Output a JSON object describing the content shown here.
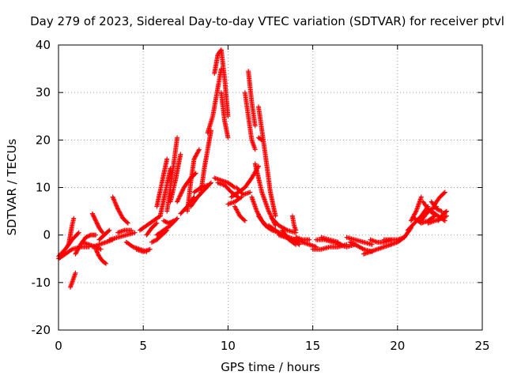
{
  "chart_data": {
    "type": "scatter",
    "title": "Day 279 of 2023, Sidereal Day-to-day VTEC variation (SDTVAR) for receiver ptvl",
    "xlabel": "GPS time / hours",
    "ylabel": "SDTVAR / TECUs",
    "xlim": [
      0,
      25
    ],
    "ylim": [
      -20,
      40
    ],
    "x_ticks": [
      0,
      5,
      10,
      15,
      20,
      25
    ],
    "y_ticks": [
      -20,
      -10,
      0,
      10,
      20,
      30,
      40
    ],
    "x_tick_labels": [
      "0",
      "5",
      "10",
      "15",
      "20",
      "25"
    ],
    "y_tick_labels": [
      "-20",
      "-10",
      "0",
      "10",
      "20",
      "30",
      "40"
    ],
    "grid": true,
    "legend": "none",
    "marker": "plus",
    "series": [
      {
        "name": "SDTVAR",
        "color": "#ff0000",
        "segments": [
          {
            "x": [
              0.0,
              0.4,
              0.8,
              1.3,
              1.8
            ],
            "y": [
              -5,
              -4,
              -3,
              -2.5,
              -2.5
            ]
          },
          {
            "x": [
              0.0,
              0.4,
              0.8,
              1.2
            ],
            "y": [
              -4.5,
              -3,
              -1,
              0.5
            ]
          },
          {
            "x": [
              0.6,
              0.7,
              0.8,
              0.9
            ],
            "y": [
              -2,
              0,
              2,
              3.5
            ]
          },
          {
            "x": [
              0.7,
              0.8,
              0.9,
              1.0
            ],
            "y": [
              -11,
              -10,
              -9,
              -8
            ]
          },
          {
            "x": [
              1.0,
              1.3,
              1.6,
              1.9,
              2.2
            ],
            "y": [
              -4,
              -2,
              -0.5,
              0,
              0
            ]
          },
          {
            "x": [
              1.4,
              1.8,
              2.2,
              2.5
            ],
            "y": [
              -1.5,
              -2,
              -2.5,
              -3
            ]
          },
          {
            "x": [
              2.0,
              2.4,
              2.8,
              3.2
            ],
            "y": [
              -2.5,
              -2,
              -1.5,
              -1
            ]
          },
          {
            "x": [
              2.2,
              2.4,
              2.6,
              2.8
            ],
            "y": [
              -3,
              -4.5,
              -5.5,
              -6
            ]
          },
          {
            "x": [
              2.0,
              2.2,
              2.4,
              2.6
            ],
            "y": [
              4.5,
              3,
              1.5,
              0.5
            ]
          },
          {
            "x": [
              2.4,
              2.7,
              3.0
            ],
            "y": [
              -1,
              0,
              1
            ]
          },
          {
            "x": [
              3.2,
              3.5,
              3.8,
              4.1
            ],
            "y": [
              8,
              5.5,
              3.5,
              2.5
            ]
          },
          {
            "x": [
              3.0,
              3.5,
              4.0,
              4.5
            ],
            "y": [
              -1,
              -0.5,
              0,
              0.5
            ]
          },
          {
            "x": [
              3.5,
              3.9,
              4.3
            ],
            "y": [
              0.5,
              1,
              1
            ]
          },
          {
            "x": [
              4.0,
              4.4,
              4.8,
              5.2
            ],
            "y": [
              -1.5,
              -2.5,
              -3,
              -3.5
            ]
          },
          {
            "x": [
              4.6,
              5.0,
              5.4
            ],
            "y": [
              -3,
              -3.5,
              -3
            ]
          },
          {
            "x": [
              4.8,
              5.2,
              5.6,
              6.0
            ],
            "y": [
              1,
              2,
              3,
              4
            ]
          },
          {
            "x": [
              5.2,
              5.5,
              5.8
            ],
            "y": [
              0,
              1.5,
              2.5
            ]
          },
          {
            "x": [
              5.5,
              5.8,
              6.1,
              6.4
            ],
            "y": [
              -1.5,
              -1,
              0,
              1
            ]
          },
          {
            "x": [
              5.8,
              6.2,
              6.6,
              7.0
            ],
            "y": [
              0,
              1,
              2,
              3.5
            ]
          },
          {
            "x": [
              6.2,
              6.5,
              6.8
            ],
            "y": [
              3,
              2.5,
              3
            ]
          },
          {
            "x": [
              5.8,
              6.1,
              6.4
            ],
            "y": [
              6,
              11,
              16
            ]
          },
          {
            "x": [
              6.0,
              6.3,
              6.6
            ],
            "y": [
              4,
              9,
              14
            ]
          },
          {
            "x": [
              6.4,
              6.6,
              6.8,
              7.0
            ],
            "y": [
              5,
              10,
              15,
              20.5
            ]
          },
          {
            "x": [
              6.6,
              6.9,
              7.2
            ],
            "y": [
              7,
              11.5,
              17
            ]
          },
          {
            "x": [
              7.0,
              7.4,
              7.8,
              8.1
            ],
            "y": [
              7,
              10,
              12,
              13
            ]
          },
          {
            "x": [
              7.2,
              7.6,
              8.0
            ],
            "y": [
              4.5,
              6,
              8
            ]
          },
          {
            "x": [
              7.6,
              7.8,
              8.0,
              8.3
            ],
            "y": [
              5,
              11,
              16,
              18
            ]
          },
          {
            "x": [
              7.8,
              8.2,
              8.6,
              9.0
            ],
            "y": [
              6,
              8,
              9.5,
              11
            ]
          },
          {
            "x": [
              8.0,
              8.4,
              8.8
            ],
            "y": [
              9,
              10,
              10.5
            ]
          },
          {
            "x": [
              8.4,
              8.6,
              8.8,
              9.0
            ],
            "y": [
              9,
              14,
              18,
              22
            ]
          },
          {
            "x": [
              8.8,
              9.1,
              9.4,
              9.6
            ],
            "y": [
              21.5,
              25,
              31,
              35
            ]
          },
          {
            "x": [
              9.2,
              9.4,
              9.6,
              9.8,
              10.0
            ],
            "y": [
              34,
              38,
              39,
              33,
              25
            ]
          },
          {
            "x": [
              9.6,
              9.8,
              10.0
            ],
            "y": [
              30,
              24,
              20.5
            ]
          },
          {
            "x": [
              9.4,
              9.8,
              10.2,
              10.6
            ],
            "y": [
              11,
              10.5,
              9,
              8
            ]
          },
          {
            "x": [
              9.2,
              9.6,
              10.0,
              10.4
            ],
            "y": [
              12,
              11.5,
              11,
              10
            ]
          },
          {
            "x": [
              10.0,
              10.4,
              10.8
            ],
            "y": [
              6.5,
              7,
              8
            ]
          },
          {
            "x": [
              10.2,
              10.6,
              11.0,
              11.4,
              11.8
            ],
            "y": [
              8,
              9,
              10,
              12,
              14.5
            ]
          },
          {
            "x": [
              10.5,
              10.9,
              11.3
            ],
            "y": [
              10,
              8.5,
              9
            ]
          },
          {
            "x": [
              10.4,
              10.7,
              11.0
            ],
            "y": [
              6,
              4,
              3
            ]
          },
          {
            "x": [
              11.2,
              11.4,
              11.6
            ],
            "y": [
              34.5,
              28,
              23
            ]
          },
          {
            "x": [
              11.0,
              11.2,
              11.4,
              11.6
            ],
            "y": [
              30,
              25,
              20,
              18
            ]
          },
          {
            "x": [
              11.8,
              12.0
            ],
            "y": [
              20.5,
              20
            ]
          },
          {
            "x": [
              11.8,
              12.0,
              12.2,
              12.5,
              12.8
            ],
            "y": [
              27,
              22,
              17,
              9,
              4
            ]
          },
          {
            "x": [
              11.6,
              11.8,
              12.0,
              12.4,
              12.8
            ],
            "y": [
              15,
              12,
              9,
              5,
              2
            ]
          },
          {
            "x": [
              11.4,
              11.7,
              12.0,
              12.4
            ],
            "y": [
              8,
              5,
              3,
              1.5
            ]
          },
          {
            "x": [
              11.8,
              12.2,
              12.6,
              13.0
            ],
            "y": [
              4,
              2,
              1,
              0.5
            ]
          },
          {
            "x": [
              12.4,
              12.8,
              13.2,
              13.6,
              14.0,
              14.4
            ],
            "y": [
              2,
              1,
              0,
              -0.5,
              -1,
              -1.5
            ]
          },
          {
            "x": [
              12.6,
              13.0,
              13.5,
              14.0
            ],
            "y": [
              3.5,
              2,
              1,
              0.5
            ]
          },
          {
            "x": [
              13.0,
              13.4,
              13.8,
              14.2
            ],
            "y": [
              0,
              -0.5,
              -1,
              -2
            ]
          },
          {
            "x": [
              13.2,
              13.6,
              14.0
            ],
            "y": [
              1,
              -1,
              -2
            ]
          },
          {
            "x": [
              13.8,
              13.9,
              14.0
            ],
            "y": [
              4,
              2,
              1
            ]
          },
          {
            "x": [
              14.0,
              14.4,
              14.8
            ],
            "y": [
              -0.5,
              -1,
              -1
            ]
          },
          {
            "x": [
              14.4,
              14.8,
              15.2
            ],
            "y": [
              -1.5,
              -2,
              -2.5
            ]
          },
          {
            "x": [
              15.0,
              15.5,
              16.0,
              16.5,
              17.0
            ],
            "y": [
              -3,
              -3,
              -2.5,
              -2.5,
              -2
            ]
          },
          {
            "x": [
              15.2,
              15.7,
              16.2,
              16.7
            ],
            "y": [
              -1,
              -1,
              -1.5,
              -2
            ]
          },
          {
            "x": [
              15.5,
              16.0,
              16.5
            ],
            "y": [
              -0.5,
              -1,
              -1.5
            ]
          },
          {
            "x": [
              16.5,
              17.0,
              17.5,
              18.0,
              18.5
            ],
            "y": [
              -2,
              -2.5,
              -2,
              -3,
              -3.5
            ]
          },
          {
            "x": [
              17.0,
              17.5,
              18.0,
              18.5
            ],
            "y": [
              -0.5,
              -1,
              -1.5,
              -2
            ]
          },
          {
            "x": [
              17.2,
              17.5
            ],
            "y": [
              -1.5,
              -2
            ]
          },
          {
            "x": [
              18.0,
              18.4,
              18.8,
              19.2,
              19.6
            ],
            "y": [
              -4,
              -3.5,
              -3,
              -2.5,
              -2
            ]
          },
          {
            "x": [
              18.4,
              18.8,
              19.2,
              19.6
            ],
            "y": [
              -1,
              -1.5,
              -1.5,
              -1
            ]
          },
          {
            "x": [
              19.2,
              19.6,
              20.0,
              20.4
            ],
            "y": [
              -1,
              -1,
              -1,
              -0.5
            ]
          },
          {
            "x": [
              19.6,
              20.0,
              20.4,
              20.8
            ],
            "y": [
              -2,
              -1.5,
              -0.5,
              1.5
            ]
          },
          {
            "x": [
              20.6,
              21.0,
              21.4,
              21.8
            ],
            "y": [
              1,
              2.5,
              4,
              6
            ]
          },
          {
            "x": [
              20.8,
              21.1,
              21.4
            ],
            "y": [
              3,
              5,
              8
            ]
          },
          {
            "x": [
              21.0,
              21.4,
              21.8,
              22.2
            ],
            "y": [
              3.5,
              2.5,
              3,
              4
            ]
          },
          {
            "x": [
              21.4,
              21.7,
              22.0,
              22.3
            ],
            "y": [
              3,
              4.5,
              5.5,
              6
            ]
          },
          {
            "x": [
              21.5,
              21.8,
              22.1
            ],
            "y": [
              7,
              5.5,
              4.5
            ]
          },
          {
            "x": [
              21.8,
              22.2,
              22.6,
              22.9
            ],
            "y": [
              2.5,
              3,
              3.5,
              4
            ]
          },
          {
            "x": [
              22.0,
              22.4,
              22.8
            ],
            "y": [
              5,
              4,
              3
            ]
          },
          {
            "x": [
              22.2,
              22.5,
              22.8
            ],
            "y": [
              6.5,
              8,
              9
            ]
          },
          {
            "x": [
              22.4,
              22.7,
              22.9
            ],
            "y": [
              3,
              4.5,
              5
            ]
          },
          {
            "x": [
              22.0,
              22.3,
              22.6
            ],
            "y": [
              7,
              5.5,
              5
            ]
          }
        ]
      }
    ]
  }
}
